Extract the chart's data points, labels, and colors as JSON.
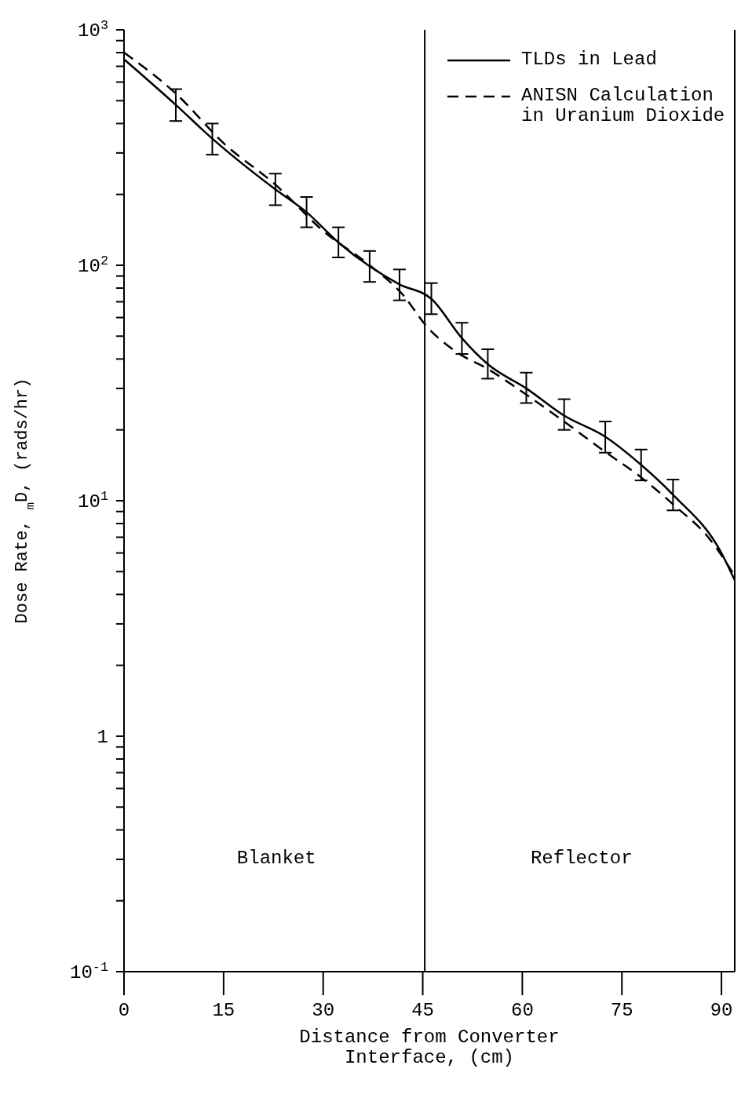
{
  "chart_data": {
    "type": "line",
    "xlabel": "Distance from Converter\nInterface, (cm)",
    "ylabel": "Dose Rate, $_{m}$D, (rads/hr)",
    "xlim": [
      0,
      92
    ],
    "xticks": [
      0,
      15,
      30,
      45,
      60,
      75,
      90
    ],
    "ylim": [
      0.1,
      1000
    ],
    "log": true,
    "yticks": [
      {
        "value": 0.1,
        "label": "10$^{-1}$"
      },
      {
        "value": 0.2,
        "label": null
      },
      {
        "value": 0.3,
        "label": null
      },
      {
        "value": 0.4,
        "label": null
      },
      {
        "value": 0.5,
        "label": null
      },
      {
        "value": 0.6,
        "label": null
      },
      {
        "value": 0.7,
        "label": null
      },
      {
        "value": 0.8,
        "label": null
      },
      {
        "value": 0.9,
        "label": null
      },
      {
        "value": 1,
        "label": "1"
      },
      {
        "value": 2,
        "label": null
      },
      {
        "value": 3,
        "label": null
      },
      {
        "value": 4,
        "label": null
      },
      {
        "value": 5,
        "label": null
      },
      {
        "value": 6,
        "label": null
      },
      {
        "value": 7,
        "label": null
      },
      {
        "value": 8,
        "label": null
      },
      {
        "value": 9,
        "label": null
      },
      {
        "value": 10,
        "label": "10$^{1}$"
      },
      {
        "value": 20,
        "label": null
      },
      {
        "value": 30,
        "label": null
      },
      {
        "value": 40,
        "label": null
      },
      {
        "value": 50,
        "label": null
      },
      {
        "value": 60,
        "label": null
      },
      {
        "value": 70,
        "label": null
      },
      {
        "value": 80,
        "label": null
      },
      {
        "value": 90,
        "label": null
      },
      {
        "value": 100,
        "label": "10$^{2}$"
      },
      {
        "value": 200,
        "label": null
      },
      {
        "value": 300,
        "label": null
      },
      {
        "value": 400,
        "label": null
      },
      {
        "value": 500,
        "label": null
      },
      {
        "value": 600,
        "label": null
      },
      {
        "value": 700,
        "label": null
      },
      {
        "value": 800,
        "label": null
      },
      {
        "value": 900,
        "label": null
      },
      {
        "value": 1000,
        "label": "10$^{3}$"
      }
    ],
    "grid": false,
    "legend": "top right",
    "series": [
      {
        "name": "TLDs in Lead",
        "color": "#000000",
        "line_style": "solid",
        "x": [
          0,
          7.8,
          13.3,
          22.8,
          27.5,
          32.3,
          37,
          41.5,
          46.3,
          50.9,
          54.8,
          60.6,
          66.3,
          72.5,
          77.9,
          82.7,
          90,
          92
        ],
        "values": [
          750,
          480,
          345,
          210,
          168,
          125,
          99,
          83,
          72,
          49,
          38,
          30,
          23,
          18.7,
          14.2,
          10.6,
          6,
          4.6
        ],
        "errors": [
          null,
          [
            410,
            560
          ],
          [
            295,
            400
          ],
          [
            180,
            245
          ],
          [
            145,
            195
          ],
          [
            108,
            145
          ],
          [
            85,
            115
          ],
          [
            71,
            96
          ],
          [
            62,
            84
          ],
          [
            42,
            57
          ],
          [
            33,
            44
          ],
          [
            26,
            35
          ],
          [
            20,
            27
          ],
          [
            16,
            21.7
          ],
          [
            12.2,
            16.5
          ],
          [
            9.1,
            12.3
          ],
          null,
          null
        ]
      },
      {
        "name": "ANISN Calculation in Uranium Dioxide",
        "color": "#000000",
        "line_style": "dashed",
        "x": [
          0,
          8,
          15,
          22.8,
          30,
          37,
          42,
          45.6,
          50,
          55,
          60,
          66,
          72,
          78,
          83,
          88,
          92
        ],
        "values": [
          800,
          530,
          330,
          220,
          140,
          100,
          75,
          55,
          43,
          36,
          29,
          22,
          16.5,
          12.5,
          9.5,
          7,
          4.8
        ]
      }
    ],
    "ref_lines": [
      {
        "axis": "x",
        "value": 45.3,
        "color": "#000000",
        "line_style": "solid"
      }
    ],
    "annotations": [
      "Blanket",
      "Reflector"
    ]
  }
}
